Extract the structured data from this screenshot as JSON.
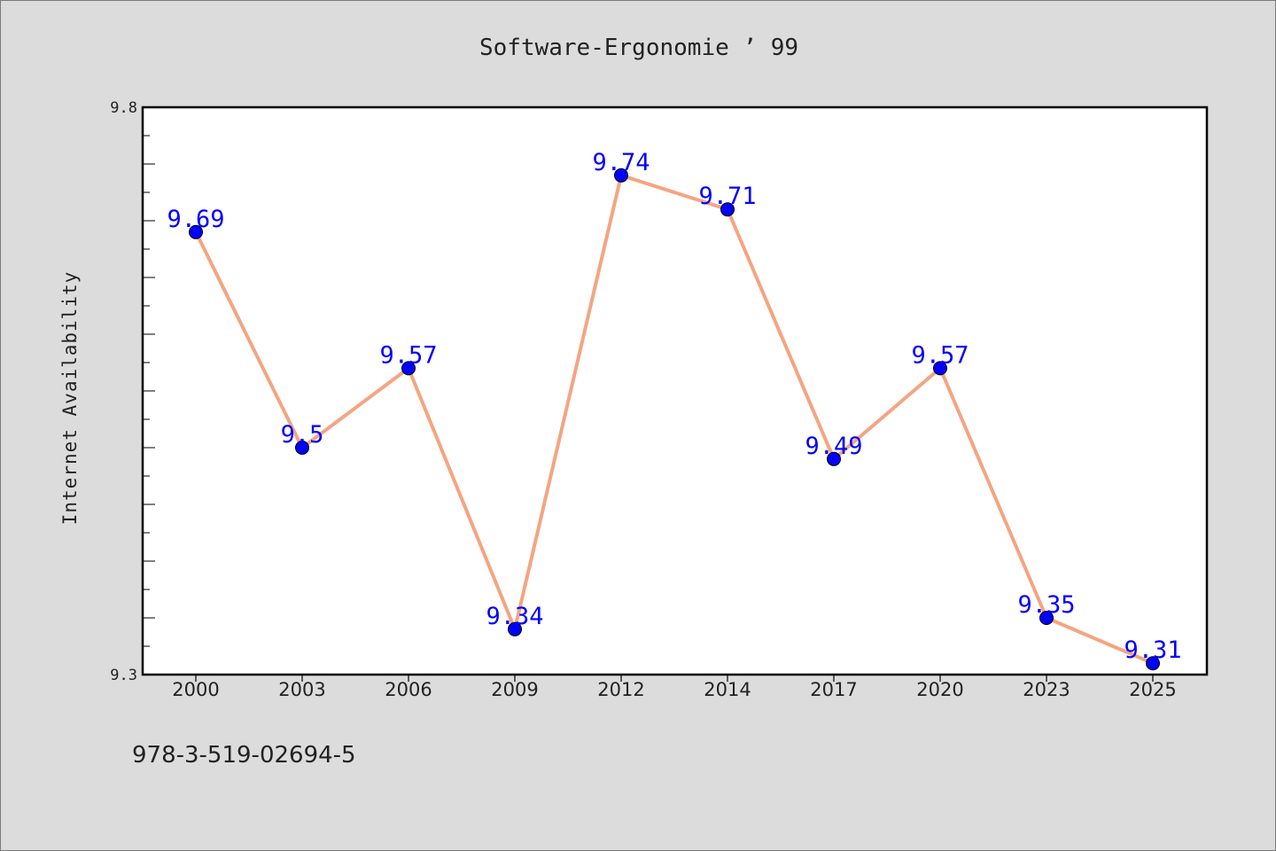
{
  "title": "Software-Ergonomie ’ 99",
  "footer_text": "978-3-519-02694-5",
  "colors": {
    "background": "#dcdcdc",
    "plot_area": "#ffffff",
    "line": "#f4a582",
    "marker": "#0000ff",
    "data_label": "#0000ff"
  },
  "chart_data": {
    "type": "line",
    "title": "Software-Ergonomie ’ 99",
    "xlabel": "",
    "ylabel": "Internet Availability",
    "categories": [
      "2000",
      "2003",
      "2006",
      "2009",
      "2012",
      "2014",
      "2017",
      "2020",
      "2023",
      "2025"
    ],
    "series": [
      {
        "values": [
          9.69,
          9.5,
          9.57,
          9.34,
          9.74,
          9.71,
          9.49,
          9.57,
          9.35,
          9.31
        ],
        "labels": [
          "9.69",
          "9.5",
          "9.57",
          "9.34",
          "9.74",
          "9.71",
          "9.49",
          "9.57",
          "9.35",
          "9.31"
        ]
      }
    ],
    "ylim": [
      9.3,
      9.8
    ],
    "yticks": [
      "9.3",
      "9.8"
    ],
    "grid": false,
    "legend": "none"
  }
}
